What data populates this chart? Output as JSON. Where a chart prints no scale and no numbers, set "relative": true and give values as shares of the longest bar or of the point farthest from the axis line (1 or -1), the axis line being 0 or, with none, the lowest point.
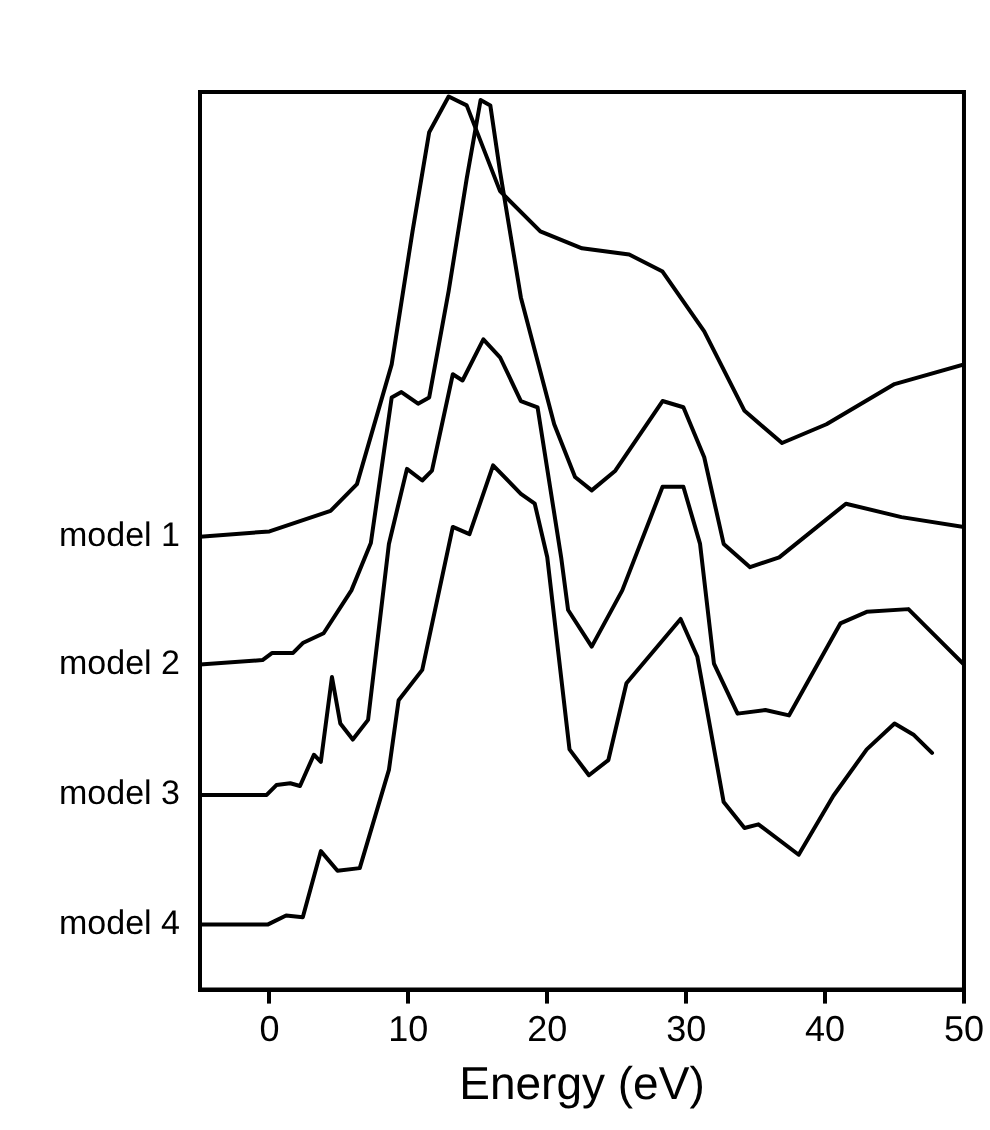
{
  "chart_data": {
    "type": "line",
    "xlabel": "Energy (eV)",
    "relative": true,
    "xlim": [
      -5,
      50
    ],
    "xticks": [
      0,
      10,
      20,
      30,
      40,
      50
    ],
    "grid": false,
    "legend": false,
    "marker": "none",
    "line_style": "solid",
    "series": [
      {
        "name": "model 1",
        "color": "#000000",
        "x": [
          -5,
          0,
          4.4,
          6.3,
          8.8,
          10.3,
          11.5,
          12.9,
          14.2,
          16.6,
          19.5,
          22.5,
          25.9,
          28.3,
          31.3,
          34.2,
          36.9,
          40.1,
          45.0,
          50
        ],
        "values": [
          0.507,
          0.513,
          0.536,
          0.566,
          0.7,
          0.849,
          0.96,
          1.0,
          0.99,
          0.894,
          0.849,
          0.83,
          0.823,
          0.804,
          0.737,
          0.648,
          0.612,
          0.633,
          0.678,
          0.7
        ]
      },
      {
        "name": "model 2",
        "color": "#000000",
        "x": [
          -5,
          -0.5,
          0.2,
          1.7,
          2.4,
          3.9,
          5.9,
          7.3,
          8.8,
          9.5,
          10.7,
          11.5,
          12.9,
          14.2,
          15.2,
          15.9,
          16.6,
          18.1,
          20.5,
          22.0,
          23.2,
          24.9,
          28.3,
          29.8,
          31.3,
          32.7,
          34.6,
          36.7,
          41.5,
          45.5,
          50
        ],
        "values": [
          0.364,
          0.369,
          0.377,
          0.377,
          0.388,
          0.399,
          0.447,
          0.5,
          0.663,
          0.669,
          0.656,
          0.663,
          0.782,
          0.908,
          0.996,
          0.99,
          0.916,
          0.775,
          0.633,
          0.574,
          0.559,
          0.581,
          0.659,
          0.652,
          0.596,
          0.499,
          0.473,
          0.484,
          0.544,
          0.529,
          0.518
        ]
      },
      {
        "name": "model 3",
        "color": "#000000",
        "x": [
          -5,
          -0.2,
          0.5,
          1.5,
          2.2,
          3.2,
          3.7,
          4.5,
          5.1,
          6.0,
          7.1,
          8.6,
          9.9,
          11.0,
          11.7,
          13.2,
          13.9,
          15.4,
          16.6,
          18.1,
          19.3,
          21.0,
          21.5,
          23.2,
          25.4,
          28.3,
          29.8,
          31.0,
          32.0,
          33.7,
          35.7,
          37.4,
          41.1,
          43.0,
          46.0,
          50
        ],
        "values": [
          0.218,
          0.218,
          0.229,
          0.231,
          0.228,
          0.263,
          0.255,
          0.35,
          0.298,
          0.28,
          0.302,
          0.499,
          0.583,
          0.57,
          0.581,
          0.689,
          0.682,
          0.728,
          0.708,
          0.659,
          0.652,
          0.484,
          0.425,
          0.384,
          0.447,
          0.563,
          0.563,
          0.499,
          0.365,
          0.309,
          0.313,
          0.307,
          0.41,
          0.423,
          0.426,
          0.364
        ]
      },
      {
        "name": "model 4",
        "color": "#000000",
        "x": [
          -5,
          -0.1,
          1.2,
          2.4,
          3.7,
          4.9,
          6.5,
          8.6,
          9.3,
          11.0,
          13.2,
          14.4,
          16.1,
          18.1,
          19.1,
          20.0,
          21.6,
          23.0,
          24.4,
          25.7,
          29.6,
          30.8,
          32.7,
          34.2,
          35.2,
          38.1,
          40.6,
          43.0,
          45.0,
          46.4,
          47.7
        ],
        "values": [
          0.073,
          0.073,
          0.083,
          0.081,
          0.155,
          0.133,
          0.136,
          0.246,
          0.324,
          0.358,
          0.518,
          0.51,
          0.587,
          0.555,
          0.544,
          0.484,
          0.269,
          0.24,
          0.257,
          0.343,
          0.415,
          0.373,
          0.21,
          0.181,
          0.185,
          0.151,
          0.217,
          0.269,
          0.298,
          0.285,
          0.265
        ]
      }
    ]
  }
}
